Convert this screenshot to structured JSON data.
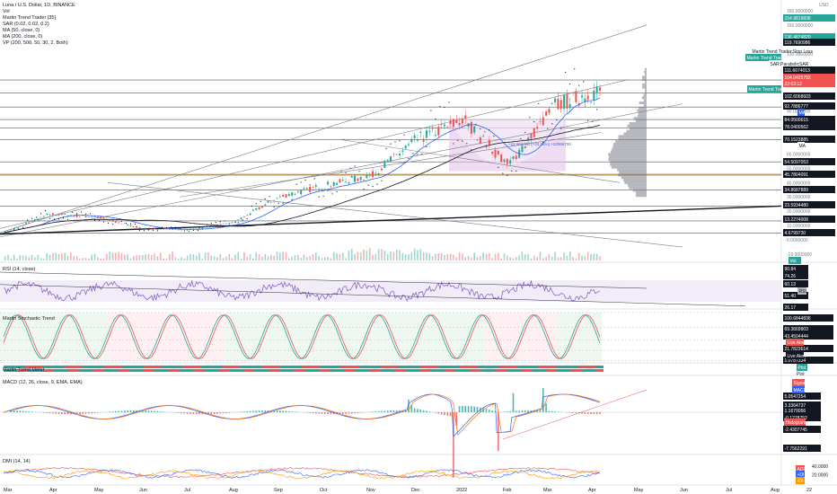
{
  "header": {
    "symbol": "Luna / U.S. Dollar, 1D, BINANCE",
    "indicators": [
      "Vol",
      "Martin Trend Trader [35]",
      "SAR (0.02, 0.02, 0.2)",
      "MA (50, close, 0)",
      "MA (200, close, 0)",
      "VP (200, 500, 50, 30, 2, Both)"
    ]
  },
  "price_axis": {
    "currency": "USD",
    "ticks": [
      "160.0000000",
      "150.0000000",
      "130.0000000",
      "120.0000000",
      "110.0000000",
      "100.0000000",
      "90.0000000",
      "80.0000000",
      "70.0000000",
      "60.0000000",
      "50.0000000",
      "40.0000000",
      "30.0000000",
      "20.0000000",
      "10.0000000",
      "0.0000000",
      "-10.0000000"
    ],
    "labels": [
      {
        "text": "154.9819838",
        "color": "#26a69a"
      },
      {
        "text": "136.4874820",
        "color": "#26a69a"
      },
      {
        "text": "119.7690986",
        "color": "#131722"
      },
      {
        "text": "111.6674013",
        "color": "#131722"
      },
      {
        "text": "104.0425792",
        "color": "#ef5350"
      },
      {
        "text": "22:03:12",
        "color": "#ef5350"
      },
      {
        "text": "102.6068603",
        "color": "#131722"
      },
      {
        "text": "92.7886777",
        "color": "#131722"
      },
      {
        "text": "84.0500615",
        "color": "#131722"
      },
      {
        "text": "78.0400562",
        "color": "#131722"
      },
      {
        "text": "70.1523885",
        "color": "#131722"
      },
      {
        "text": "54.5097053",
        "color": "#131722"
      },
      {
        "text": "45.7804091",
        "color": "#131722"
      },
      {
        "text": "34.8687889",
        "color": "#131722"
      },
      {
        "text": "23.5934480",
        "color": "#131722"
      },
      {
        "text": "13.2274008",
        "color": "#131722"
      },
      {
        "text": "4.6799730",
        "color": "#131722"
      }
    ],
    "tags": [
      {
        "text": "Martin Trend Trader:Stop Loss",
        "color": "#131722"
      },
      {
        "text": "Martin Trend Trader:Trend Line",
        "color": "#26a69a"
      },
      {
        "text": "SAR:ParabolicSAR",
        "color": "#131722"
      },
      {
        "text": "Martin Trend Trader:Live Alert",
        "color": "#26a69a"
      },
      {
        "text": "MA",
        "color": "#2962ff"
      },
      {
        "text": "MA",
        "color": "#131722"
      }
    ],
    "annotation": "~22.966700 (+34.25%) +22966700",
    "volume_tag": "Vol"
  },
  "rsi": {
    "title": "RSI (14, close)",
    "labels": [
      "90.84",
      "74.26",
      "60.13",
      "51.40",
      "26.17"
    ],
    "tag": "RSI"
  },
  "stoch": {
    "title": "Martin Stochastic Trend",
    "labels": [
      "100.6844836",
      "69.3669903",
      "43.4504444",
      "21.7823614",
      "1.0787334"
    ],
    "tags": [
      "Live Alert",
      "Live Alert"
    ]
  },
  "meter": {
    "title": "Martin Trend Meter",
    "tags": [
      "Plot",
      "Plot"
    ]
  },
  "macd": {
    "title": "MACD (12, 26, close, 9, EMA, EMA)",
    "labels": [
      "5.0547254",
      "3.3364737",
      "1.1679056",
      "-0.1278752",
      "-2.4307745",
      "-7.7562291"
    ],
    "tags": [
      "Signal",
      "MACD",
      "Histogram"
    ]
  },
  "dmi": {
    "title": "DMI (14, 14)",
    "labels": [
      "40.0000",
      "20.0000"
    ],
    "tags": [
      "ADX",
      "+DI",
      "-DI"
    ]
  },
  "time_axis": [
    "Mar",
    "Apr",
    "May",
    "Jun",
    "Jul",
    "Aug",
    "Sep",
    "Oct",
    "Nov",
    "Dec",
    "2022",
    "Feb",
    "Mar",
    "Apr",
    "May",
    "Jun",
    "Jul",
    "Aug",
    "22"
  ],
  "chart_data": {
    "type": "candlestick",
    "title": "Luna / U.S. Dollar, 1D, BINANCE",
    "x_labels": [
      "Mar",
      "Apr",
      "May",
      "Jun",
      "Jul",
      "Aug",
      "Sep",
      "Oct",
      "Nov",
      "Dec",
      "2022",
      "Feb",
      "Mar",
      "Apr"
    ],
    "close_approx": [
      5,
      18,
      16,
      8,
      7,
      12,
      30,
      38,
      45,
      70,
      84,
      52,
      94,
      104
    ],
    "last_price": 104.0425792,
    "ylim": [
      -10,
      160
    ],
    "colors": {
      "up": "#26a69a",
      "down": "#ef5350",
      "ma50": "#2962ff",
      "ma200": "#131722"
    }
  }
}
